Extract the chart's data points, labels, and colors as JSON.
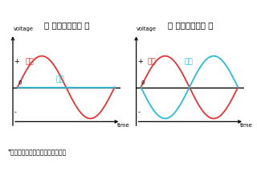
{
  "title_left": "【 耳機單端接法 】",
  "title_right": "【 耳機平衡接法 】",
  "label_pos": "正極",
  "label_neg": "負極",
  "footnote": "*以上正負極波形皆為以地為參考點",
  "bg_color": "#ffffff",
  "color_pos": "#e03535",
  "color_neg": "#30b8d8",
  "color_zero": "#000000",
  "title_fontsize": 7.5,
  "label_fontsize": 6.5,
  "footnote_fontsize": 5.5
}
